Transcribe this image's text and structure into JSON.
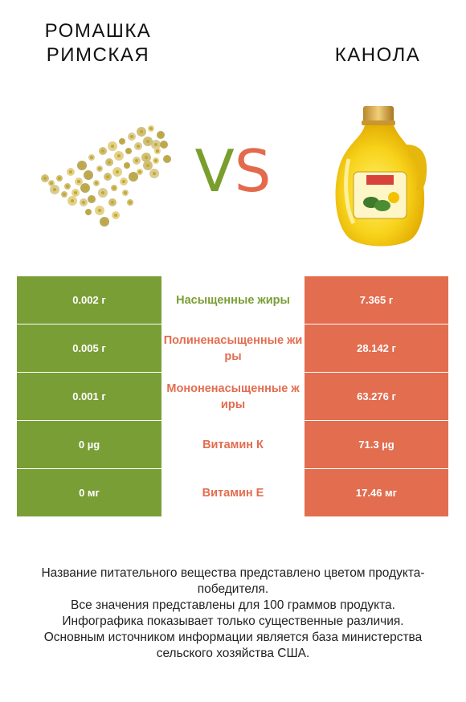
{
  "left_product": {
    "name": "Ромашка римская",
    "image_icon": "chamomile-flowers-image"
  },
  "right_product": {
    "name": "Канола",
    "image_icon": "canola-oil-bottle-image"
  },
  "vs": {
    "v": "V",
    "s": "S"
  },
  "colors": {
    "left": "#7a9e36",
    "right": "#e36d4f"
  },
  "rows": [
    {
      "left": "0.002 г",
      "nutrient": "Насыщенные жиры",
      "right": "7.365 г",
      "winner": "left"
    },
    {
      "left": "0.005 г",
      "nutrient": "Полиненасыщенные жиры",
      "right": "28.142 г",
      "winner": "right"
    },
    {
      "left": "0.001 г",
      "nutrient": "Мононенасыщенные жиры",
      "right": "63.276 г",
      "winner": "right"
    },
    {
      "left": "0 µg",
      "nutrient": "Витамин К",
      "right": "71.3 µg",
      "winner": "right"
    },
    {
      "left": "0 мг",
      "nutrient": "Витамин Е",
      "right": "17.46 мг",
      "winner": "right"
    }
  ],
  "footer": [
    "Название питательного вещества представлено цветом продукта-победителя.",
    "Все значения представлены для 100 граммов продукта.",
    "Инфографика показывает только существенные различия.",
    "Основным источником информации является база министерства сельского хозяйства США."
  ]
}
